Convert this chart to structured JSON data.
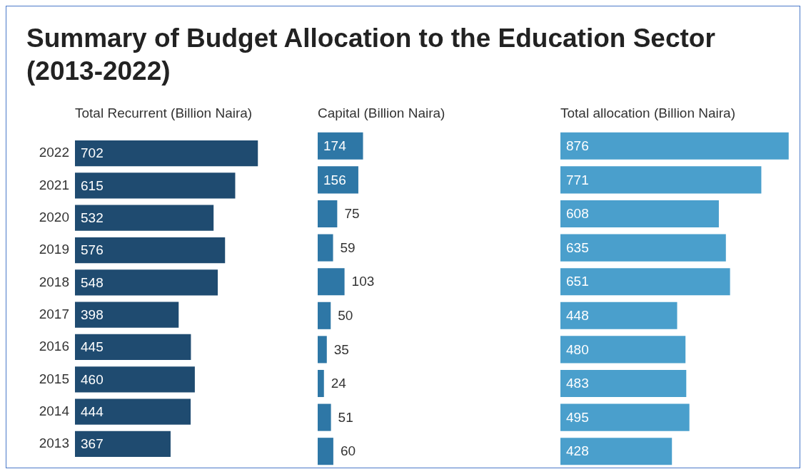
{
  "chart_data": [
    {
      "type": "bar",
      "title": "Summary of Budget Allocation to the Education Sector (2013-2022)",
      "subtitle": "Total Recurrent (Billion Naira)",
      "orientation": "horizontal",
      "categories": [
        "2022",
        "2021",
        "2020",
        "2019",
        "2018",
        "2017",
        "2016",
        "2015",
        "2014",
        "2013"
      ],
      "values": [
        702,
        615,
        532,
        576,
        548,
        398,
        445,
        460,
        444,
        367
      ],
      "color": "#1f4b70",
      "data_labels": true,
      "tick_labels": "y"
    },
    {
      "type": "bar",
      "subtitle": "Capital (Billion Naira)",
      "orientation": "horizontal",
      "categories": [
        "2022",
        "2021",
        "2020",
        "2019",
        "2018",
        "2017",
        "2016",
        "2015",
        "2014",
        "2013"
      ],
      "values": [
        174,
        156,
        75,
        59,
        103,
        50,
        35,
        24,
        51,
        60
      ],
      "color": "#2e77a6",
      "data_labels": true,
      "tick_labels": false
    },
    {
      "type": "bar",
      "subtitle": "Total allocation (Billion Naira)",
      "orientation": "horizontal",
      "categories": [
        "2022",
        "2021",
        "2020",
        "2019",
        "2018",
        "2017",
        "2016",
        "2015",
        "2014",
        "2013"
      ],
      "values": [
        876,
        771,
        608,
        635,
        651,
        448,
        480,
        483,
        495,
        428
      ],
      "color": "#4a9fcc",
      "data_labels": true,
      "tick_labels": false
    }
  ]
}
